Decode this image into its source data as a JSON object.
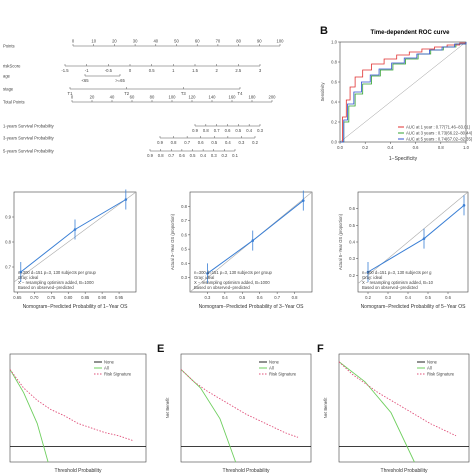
{
  "panel_letters": {
    "b": "B",
    "e": "E",
    "f": "F"
  },
  "nomogram": {
    "rows": [
      {
        "label": "Points",
        "ticks": [
          "0",
          "10",
          "20",
          "30",
          "40",
          "50",
          "60",
          "70",
          "80",
          "90",
          "100"
        ]
      },
      {
        "label": "riskScore",
        "ticks": [
          "-1.5",
          "-1",
          "-0.5",
          "0",
          "0.5",
          "1",
          "1.5",
          "2",
          "2.5",
          "3"
        ]
      },
      {
        "label": "age",
        "ticks": [
          "<65",
          ">=65"
        ]
      },
      {
        "label": "stage",
        "ticks": [
          "T1",
          "T2",
          "T3",
          "T4"
        ]
      },
      {
        "label": "Total Points",
        "ticks": [
          "0",
          "20",
          "40",
          "60",
          "80",
          "100",
          "120",
          "140",
          "160",
          "180",
          "200"
        ]
      },
      {
        "label": "1-years Survival Probability",
        "ticks": [
          "0.9",
          "0.8",
          "0.7",
          "0.6",
          "0.5",
          "0.4",
          "0.3"
        ]
      },
      {
        "label": "3-years Survival Probability",
        "ticks": [
          "0.9",
          "0.8",
          "0.7",
          "0.6",
          "0.5",
          "0.4",
          "0.3",
          "0.2"
        ]
      },
      {
        "label": "5-years Survival Probability",
        "ticks": [
          "0.9",
          "0.8",
          "0.7",
          "0.6",
          "0.5",
          "0.4",
          "0.3",
          "0.2",
          "0.1"
        ]
      }
    ]
  },
  "chart_data": [
    {
      "type": "line",
      "title": "Time-dependent ROC curve",
      "xlabel": "1−Specificity",
      "ylabel": "Sensitivity",
      "xlim": [
        0,
        1
      ],
      "ylim": [
        0,
        1
      ],
      "xticks": [
        "0.0",
        "0.2",
        "0.4",
        "0.6",
        "0.8",
        "1.0"
      ],
      "yticks": [
        "0.0",
        "0.2",
        "0.4",
        "0.6",
        "0.8",
        "1.0"
      ],
      "legend_placement": "bottom-right",
      "series": [
        {
          "name": "AUC at 1 year : 0.77(71.46−83.01)",
          "color": "#e03030",
          "x": [
            0,
            0.02,
            0.05,
            0.08,
            0.12,
            0.18,
            0.25,
            0.35,
            0.45,
            0.55,
            0.65,
            0.75,
            0.85,
            0.95,
            1
          ],
          "y": [
            0,
            0.25,
            0.42,
            0.55,
            0.65,
            0.72,
            0.78,
            0.83,
            0.87,
            0.9,
            0.93,
            0.95,
            0.97,
            0.99,
            1
          ]
        },
        {
          "name": "AUC at 3 years : 0.73(66.22−80.44)",
          "color": "#30a030",
          "x": [
            0,
            0.03,
            0.07,
            0.12,
            0.18,
            0.25,
            0.32,
            0.42,
            0.52,
            0.62,
            0.72,
            0.82,
            0.92,
            1
          ],
          "y": [
            0,
            0.2,
            0.36,
            0.48,
            0.58,
            0.66,
            0.72,
            0.78,
            0.83,
            0.88,
            0.92,
            0.95,
            0.98,
            1
          ]
        },
        {
          "name": "AUC at 5 years : 0.74(67.02−82.35)",
          "color": "#3050d0",
          "x": [
            0,
            0.03,
            0.06,
            0.11,
            0.17,
            0.24,
            0.31,
            0.41,
            0.51,
            0.61,
            0.71,
            0.81,
            0.91,
            1
          ],
          "y": [
            0,
            0.22,
            0.38,
            0.5,
            0.6,
            0.67,
            0.73,
            0.79,
            0.84,
            0.88,
            0.92,
            0.95,
            0.98,
            1
          ]
        }
      ]
    },
    {
      "type": "line",
      "xlabel": "Nomogram−Predicted Probability of 1−Year OS",
      "ylabel": "",
      "xlim": [
        0.64,
        1.0
      ],
      "ylim": [
        0.6,
        1.0
      ],
      "xticks": [
        "0.65",
        "0.70",
        "0.75",
        "0.80",
        "0.85",
        "0.90",
        "0.95"
      ],
      "yticks": [
        "0.7",
        "0.8",
        "0.9"
      ],
      "annotations": [
        "n=300 d=151 p=3, 130 subjects per group",
        "Gray: ideal",
        "X − resampling optimism added, B=1000",
        "Based on observed−predicted"
      ],
      "series": [
        {
          "name": "observed",
          "color": "#3a7fd5",
          "x": [
            0.66,
            0.82,
            0.97
          ],
          "y": [
            0.68,
            0.85,
            0.97
          ]
        }
      ]
    },
    {
      "type": "line",
      "xlabel": "Nomogram−Predicted Probability of 3−Year OS",
      "ylabel": "Actual 3−Year OS (proportion)",
      "xlim": [
        0.2,
        0.9
      ],
      "ylim": [
        0.2,
        0.9
      ],
      "xticks": [
        "0.3",
        "0.4",
        "0.5",
        "0.6",
        "0.7",
        "0.8"
      ],
      "yticks": [
        "0.3",
        "0.4",
        "0.5",
        "0.6",
        "0.7",
        "0.8"
      ],
      "annotations": [
        "n=300 d=151 p=3, 130 subjects per group",
        "Gray: ideal",
        "X − resampling optimism added, B=1000",
        "Based on observed−predicted"
      ],
      "series": [
        {
          "name": "observed",
          "color": "#3a7fd5",
          "x": [
            0.3,
            0.56,
            0.85
          ],
          "y": [
            0.33,
            0.56,
            0.84
          ]
        }
      ]
    },
    {
      "type": "line",
      "xlabel": "Nomogram−Predicted Probability of 5−Year OS",
      "ylabel": "Actual 5−Year OS (proportion)",
      "xlim": [
        0.15,
        0.7
      ],
      "ylim": [
        0.1,
        0.7
      ],
      "xticks": [
        "0.2",
        "0.3",
        "0.4",
        "0.5",
        "0.6"
      ],
      "yticks": [
        "0.2",
        "0.3",
        "0.4",
        "0.5",
        "0.6"
      ],
      "annotations": [
        "n=300 d=151 p=3, 130 subjects per g",
        "Gray: ideal",
        "X − resampling optimism added, B=10",
        "Based on observed−predicted"
      ],
      "series": [
        {
          "name": "observed",
          "color": "#3a7fd5",
          "x": [
            0.2,
            0.48,
            0.68
          ],
          "y": [
            0.22,
            0.42,
            0.62
          ]
        }
      ]
    },
    {
      "type": "line",
      "xlabel": "Threshold Probability",
      "ylabel": "",
      "xlim": [
        0,
        1
      ],
      "ylim": [
        -0.1,
        0.6
      ],
      "series": [
        {
          "name": "None",
          "color": "#222222",
          "x": [
            0,
            1
          ],
          "y": [
            0,
            0
          ]
        },
        {
          "name": "All",
          "color": "#6fcf5f",
          "x": [
            0,
            0.1,
            0.2,
            0.28
          ],
          "y": [
            0.5,
            0.35,
            0.15,
            -0.1
          ]
        },
        {
          "name": "Risk Signature",
          "color": "#e0507a",
          "x": [
            0,
            0.1,
            0.2,
            0.3,
            0.4,
            0.5,
            0.6,
            0.7,
            0.8,
            0.9
          ],
          "y": [
            0.5,
            0.38,
            0.3,
            0.24,
            0.2,
            0.15,
            0.12,
            0.09,
            0.07,
            0.04
          ]
        }
      ]
    },
    {
      "type": "line",
      "xlabel": "Threshold Probability",
      "ylabel": "Net Benefit",
      "xlim": [
        0,
        1
      ],
      "ylim": [
        -0.1,
        0.6
      ],
      "legend_placement": "top-right",
      "series": [
        {
          "name": "None",
          "color": "#222222",
          "x": [
            0,
            1
          ],
          "y": [
            0,
            0
          ]
        },
        {
          "name": "All",
          "color": "#6fcf5f",
          "x": [
            0,
            0.15,
            0.3,
            0.42
          ],
          "y": [
            0.5,
            0.38,
            0.18,
            -0.1
          ]
        },
        {
          "name": "Risk Signature",
          "color": "#e0507a",
          "x": [
            0,
            0.1,
            0.2,
            0.3,
            0.4,
            0.5,
            0.6,
            0.7,
            0.8,
            0.9
          ],
          "y": [
            0.5,
            0.42,
            0.36,
            0.31,
            0.26,
            0.21,
            0.17,
            0.13,
            0.09,
            0.06
          ]
        }
      ]
    },
    {
      "type": "line",
      "xlabel": "Threshold Probability",
      "ylabel": "Net Benefit",
      "xlim": [
        0,
        1
      ],
      "ylim": [
        -0.1,
        0.6
      ],
      "legend_placement": "top-right",
      "series": [
        {
          "name": "None",
          "color": "#222222",
          "x": [
            0,
            1
          ],
          "y": [
            0,
            0
          ]
        },
        {
          "name": "All",
          "color": "#6fcf5f",
          "x": [
            0,
            0.2,
            0.4,
            0.58
          ],
          "y": [
            0.55,
            0.42,
            0.22,
            -0.1
          ]
        },
        {
          "name": "Risk Signature",
          "color": "#e0507a",
          "x": [
            0,
            0.1,
            0.2,
            0.3,
            0.4,
            0.5,
            0.6,
            0.7,
            0.8,
            0.9
          ],
          "y": [
            0.55,
            0.47,
            0.41,
            0.35,
            0.3,
            0.25,
            0.2,
            0.15,
            0.11,
            0.07
          ]
        }
      ]
    }
  ]
}
